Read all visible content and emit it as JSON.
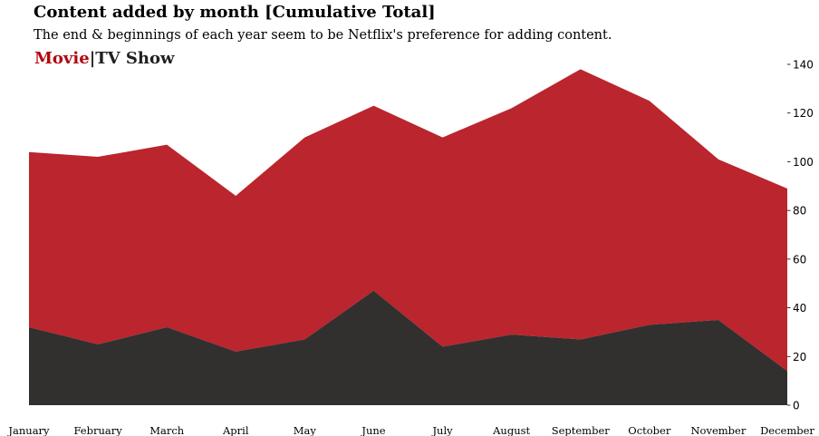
{
  "colors": {
    "movie": "#b20710",
    "tv_show": "#221f1f",
    "axis": "#000000"
  },
  "chart_data": {
    "type": "area",
    "stacked": true,
    "title": "Content added by month [Cumulative Total]",
    "subtitle": "The end & beginnings of each year seem to be Netflix's preference for adding content.",
    "legend": {
      "placement": "top-left",
      "items": [
        "Movie",
        "TV Show"
      ],
      "separator": "|"
    },
    "categories": [
      "January",
      "February",
      "March",
      "April",
      "May",
      "June",
      "July",
      "August",
      "September",
      "October",
      "November",
      "December"
    ],
    "series": [
      {
        "name": "TV Show",
        "values": [
          32,
          25,
          32,
          22,
          27,
          47,
          24,
          29,
          27,
          33,
          35,
          14
        ]
      },
      {
        "name": "Movie",
        "values": [
          72,
          77,
          75,
          64,
          83,
          76,
          86,
          93,
          111,
          92,
          66,
          75
        ]
      }
    ],
    "ylim": [
      0,
      140
    ],
    "yticks": [
      0,
      20,
      40,
      60,
      80,
      100,
      120,
      140
    ],
    "y_axis_side": "right",
    "grid": false
  }
}
